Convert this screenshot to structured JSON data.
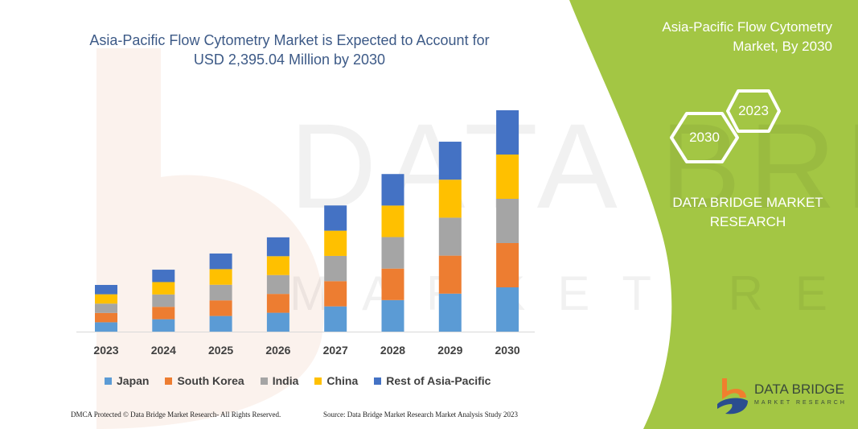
{
  "title": "Asia-Pacific Flow Cytometry Market is Expected to Account for USD 2,395.04 Million by 2030",
  "title_line1": "Asia-Pacific Flow Cytometry Market is Expected to Account for",
  "title_line2": "USD 2,395.04 Million by 2030",
  "side_panel": {
    "title_line1": "Asia-Pacific Flow Cytometry",
    "title_line2": "Market, By 2030",
    "hex_start": "2023",
    "hex_end": "2030",
    "brand_line1": "DATA BRIDGE MARKET",
    "brand_line2": "RESEARCH",
    "logo_name": "DATA BRIDGE",
    "logo_sub": "MARKET RESEARCH",
    "color": "#a3c644"
  },
  "watermark": "DATA BRIDGE",
  "watermark_sub": "MARKET RESEARCH",
  "footer": {
    "left": "DMCA Protected © Data Bridge Market Research- All Rights Reserved.",
    "right": "Source: Data Bridge Market Research Market Analysis Study 2023"
  },
  "chart_data": {
    "type": "bar",
    "stacked": true,
    "title": "Asia-Pacific Flow Cytometry Market is Expected to Account for USD 2,395.04 Million by 2030",
    "xlabel": "",
    "ylabel": "",
    "y_axis_visible": false,
    "grid": false,
    "legend_position": "bottom",
    "categories": [
      "2023",
      "2024",
      "2025",
      "2026",
      "2027",
      "2028",
      "2029",
      "2030"
    ],
    "series": [
      {
        "name": "Japan",
        "color": "#5b9bd5",
        "values": [
          101,
          134,
          169,
          204,
          273,
          341,
          411,
          479
        ]
      },
      {
        "name": "South Korea",
        "color": "#ed7d31",
        "values": [
          101,
          134,
          169,
          204,
          273,
          341,
          411,
          479
        ]
      },
      {
        "name": "India",
        "color": "#a5a5a5",
        "values": [
          101,
          134,
          169,
          204,
          273,
          341,
          411,
          479
        ]
      },
      {
        "name": "China",
        "color": "#ffc000",
        "values": [
          101,
          134,
          169,
          204,
          273,
          341,
          411,
          479
        ]
      },
      {
        "name": "Rest of Asia-Pacific",
        "color": "#4472c4",
        "values": [
          101,
          134,
          169,
          204,
          273,
          341,
          411,
          479
        ]
      }
    ]
  }
}
